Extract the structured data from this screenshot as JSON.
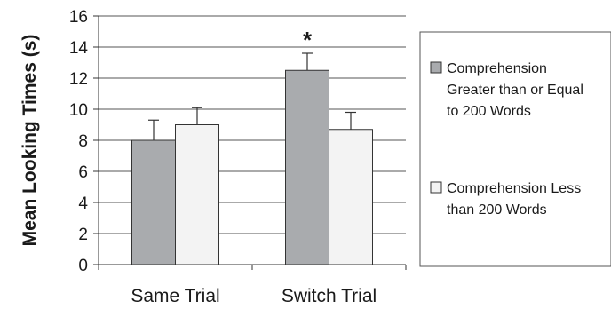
{
  "chart_data": {
    "type": "bar",
    "ylabel": "Mean Looking Times (s)",
    "xlabel": "",
    "title": "",
    "ylim": [
      0,
      16
    ],
    "yticks": [
      0,
      2,
      4,
      6,
      8,
      10,
      12,
      14,
      16
    ],
    "grid": true,
    "categories": [
      "Same Trial",
      "Switch Trial"
    ],
    "series": [
      {
        "name": "Comprehension Greater than or Equal to 200 Words",
        "legend_lines": [
          "Comprehension",
          "Greater than or Equal",
          "to 200 Words"
        ],
        "color": "#a9abae",
        "values": [
          8.0,
          12.5
        ],
        "error": [
          1.3,
          1.1
        ]
      },
      {
        "name": "Comprehension Less than 200 Words",
        "legend_lines": [
          "Comprehension Less",
          "than 200 Words"
        ],
        "color": "#f3f3f3",
        "values": [
          9.0,
          8.7
        ],
        "error": [
          1.1,
          1.1
        ]
      }
    ],
    "annotations": [
      {
        "text": "*",
        "category": "Switch Trial"
      }
    ],
    "legend_position": "right"
  }
}
